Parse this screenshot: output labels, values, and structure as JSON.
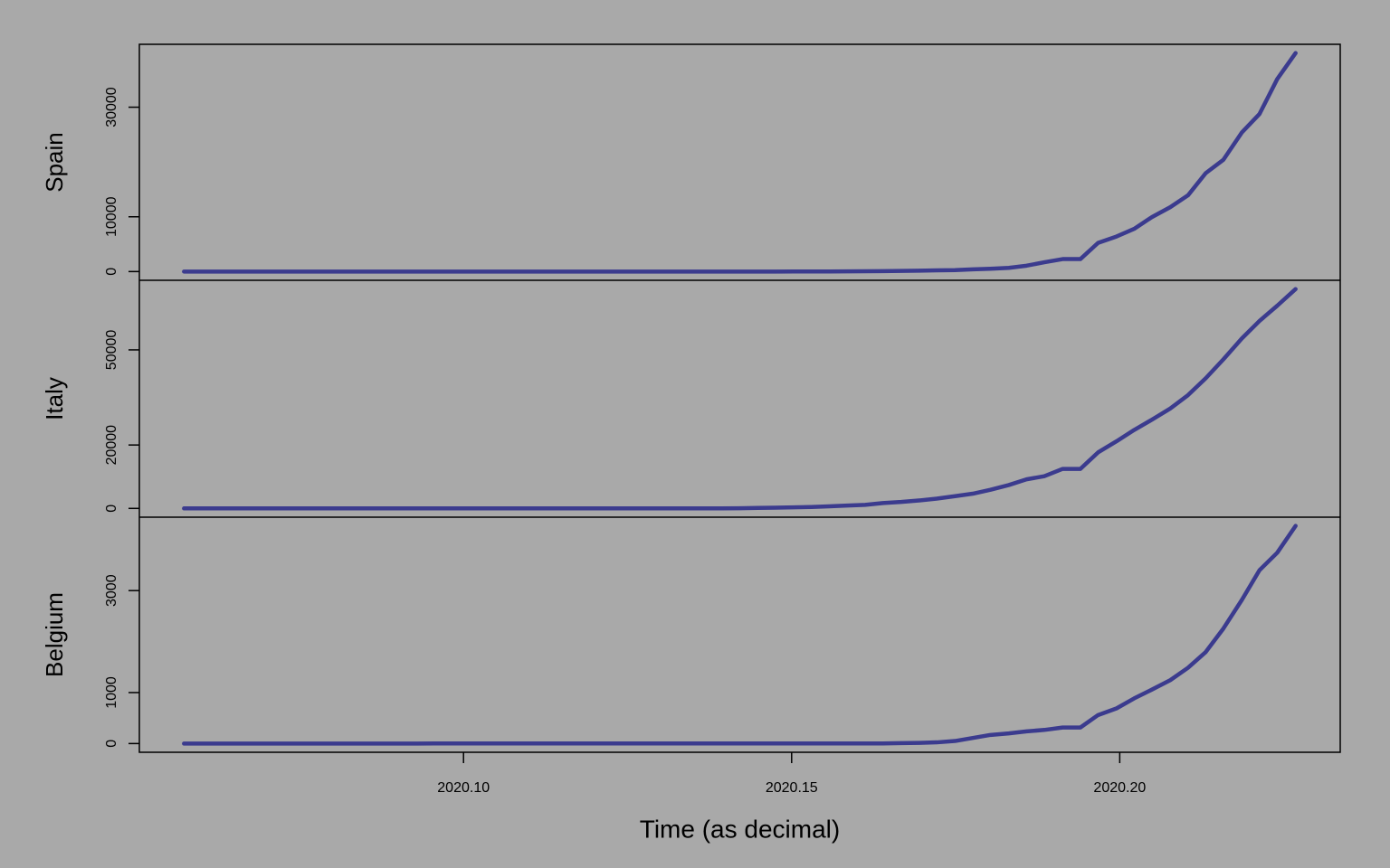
{
  "chart_data": [
    {
      "type": "line",
      "ylabel": "Spain",
      "color": "#3b3b8e",
      "x": [
        2020.0574,
        2020.0601,
        2020.0628,
        2020.0656,
        2020.0683,
        2020.071,
        2020.0738,
        2020.0765,
        2020.0792,
        2020.082,
        2020.0847,
        2020.0874,
        2020.0902,
        2020.0929,
        2020.0956,
        2020.0984,
        2020.1011,
        2020.1038,
        2020.1066,
        2020.1093,
        2020.112,
        2020.1148,
        2020.1175,
        2020.1202,
        2020.123,
        2020.1257,
        2020.1284,
        2020.1311,
        2020.1339,
        2020.1366,
        2020.1393,
        2020.1421,
        2020.1448,
        2020.1475,
        2020.1503,
        2020.153,
        2020.1557,
        2020.1585,
        2020.1612,
        2020.1639,
        2020.1667,
        2020.1694,
        2020.1721,
        2020.1749,
        2020.1776,
        2020.1803,
        2020.1831,
        2020.1858,
        2020.1885,
        2020.1913,
        2020.194,
        2020.1967,
        2020.1995,
        2020.2022,
        2020.2049,
        2020.2077,
        2020.2104,
        2020.2131,
        2020.2158,
        2020.2186,
        2020.2213,
        2020.224,
        2020.2268
      ],
      "values": [
        0,
        0,
        0,
        0,
        0,
        0,
        0,
        0,
        0,
        0,
        1,
        1,
        1,
        1,
        1,
        1,
        1,
        1,
        2,
        2,
        2,
        2,
        2,
        2,
        2,
        2,
        2,
        2,
        2,
        2,
        2,
        2,
        2,
        2,
        6,
        13,
        15,
        32,
        45,
        84,
        120,
        165,
        222,
        259,
        400,
        500,
        673,
        1073,
        1695,
        2277,
        2277,
        5232,
        6391,
        7798,
        9942,
        11748,
        13910,
        17963,
        20410,
        25374,
        28768,
        35136,
        39885
      ],
      "xlim": [
        2020.0506,
        2020.2336
      ],
      "ylim": [
        -1595,
        41480
      ],
      "yticks": [
        0,
        10000,
        30000
      ]
    },
    {
      "type": "line",
      "ylabel": "Italy",
      "color": "#3b3b8e",
      "x": [
        2020.0574,
        2020.0601,
        2020.0628,
        2020.0656,
        2020.0683,
        2020.071,
        2020.0738,
        2020.0765,
        2020.0792,
        2020.082,
        2020.0847,
        2020.0874,
        2020.0902,
        2020.0929,
        2020.0956,
        2020.0984,
        2020.1011,
        2020.1038,
        2020.1066,
        2020.1093,
        2020.112,
        2020.1148,
        2020.1175,
        2020.1202,
        2020.123,
        2020.1257,
        2020.1284,
        2020.1311,
        2020.1339,
        2020.1366,
        2020.1393,
        2020.1421,
        2020.1448,
        2020.1475,
        2020.1503,
        2020.153,
        2020.1557,
        2020.1585,
        2020.1612,
        2020.1639,
        2020.1667,
        2020.1694,
        2020.1721,
        2020.1749,
        2020.1776,
        2020.1803,
        2020.1831,
        2020.1858,
        2020.1885,
        2020.1913,
        2020.194,
        2020.1967,
        2020.1995,
        2020.2022,
        2020.2049,
        2020.2077,
        2020.2104,
        2020.2131,
        2020.2158,
        2020.2186,
        2020.2213,
        2020.224,
        2020.2268
      ],
      "values": [
        0,
        0,
        0,
        0,
        0,
        0,
        0,
        0,
        0,
        2,
        2,
        2,
        2,
        2,
        2,
        2,
        3,
        3,
        3,
        3,
        3,
        3,
        3,
        3,
        3,
        3,
        3,
        3,
        3,
        3,
        20,
        62,
        155,
        229,
        322,
        453,
        655,
        888,
        1128,
        1694,
        2036,
        2502,
        3089,
        3858,
        4636,
        5883,
        7375,
        9172,
        10149,
        12462,
        12462,
        17660,
        21157,
        24747,
        27980,
        31506,
        35713,
        41035,
        47021,
        53578,
        59138,
        63927,
        69176
      ],
      "xlim": [
        2020.0506,
        2020.2336
      ],
      "ylim": [
        -2767,
        71943
      ],
      "yticks": [
        0,
        20000,
        50000
      ]
    },
    {
      "type": "line",
      "ylabel": "Belgium",
      "color": "#3b3b8e",
      "xlabel": "Time (as decimal)",
      "x": [
        2020.0574,
        2020.0601,
        2020.0628,
        2020.0656,
        2020.0683,
        2020.071,
        2020.0738,
        2020.0765,
        2020.0792,
        2020.082,
        2020.0847,
        2020.0874,
        2020.0902,
        2020.0929,
        2020.0956,
        2020.0984,
        2020.1011,
        2020.1038,
        2020.1066,
        2020.1093,
        2020.112,
        2020.1148,
        2020.1175,
        2020.1202,
        2020.123,
        2020.1257,
        2020.1284,
        2020.1311,
        2020.1339,
        2020.1366,
        2020.1393,
        2020.1421,
        2020.1448,
        2020.1475,
        2020.1503,
        2020.153,
        2020.1557,
        2020.1585,
        2020.1612,
        2020.1639,
        2020.1667,
        2020.1694,
        2020.1721,
        2020.1749,
        2020.1776,
        2020.1803,
        2020.1831,
        2020.1858,
        2020.1885,
        2020.1913,
        2020.194,
        2020.1967,
        2020.1995,
        2020.2022,
        2020.2049,
        2020.2077,
        2020.2104,
        2020.2131,
        2020.2158,
        2020.2186,
        2020.2213,
        2020.224,
        2020.2268
      ],
      "values": [
        0,
        0,
        0,
        0,
        0,
        0,
        0,
        0,
        0,
        0,
        0,
        0,
        0,
        0,
        1,
        1,
        1,
        1,
        1,
        1,
        1,
        1,
        1,
        1,
        1,
        1,
        1,
        1,
        1,
        1,
        1,
        1,
        1,
        1,
        1,
        1,
        1,
        1,
        1,
        2,
        8,
        13,
        23,
        50,
        109,
        169,
        200,
        239,
        267,
        314,
        314,
        559,
        689,
        886,
        1058,
        1243,
        1486,
        1795,
        2257,
        2815,
        3401,
        3743,
        4269
      ],
      "xlim": [
        2020.0506,
        2020.2336
      ],
      "ylim": [
        -171,
        4440
      ],
      "yticks": [
        0,
        1000,
        3000
      ],
      "xticks": [
        {
          "value": 2020.1,
          "label": "2020.10"
        },
        {
          "value": 2020.15,
          "label": "2020.15"
        },
        {
          "value": 2020.2,
          "label": "2020.20"
        }
      ]
    }
  ]
}
